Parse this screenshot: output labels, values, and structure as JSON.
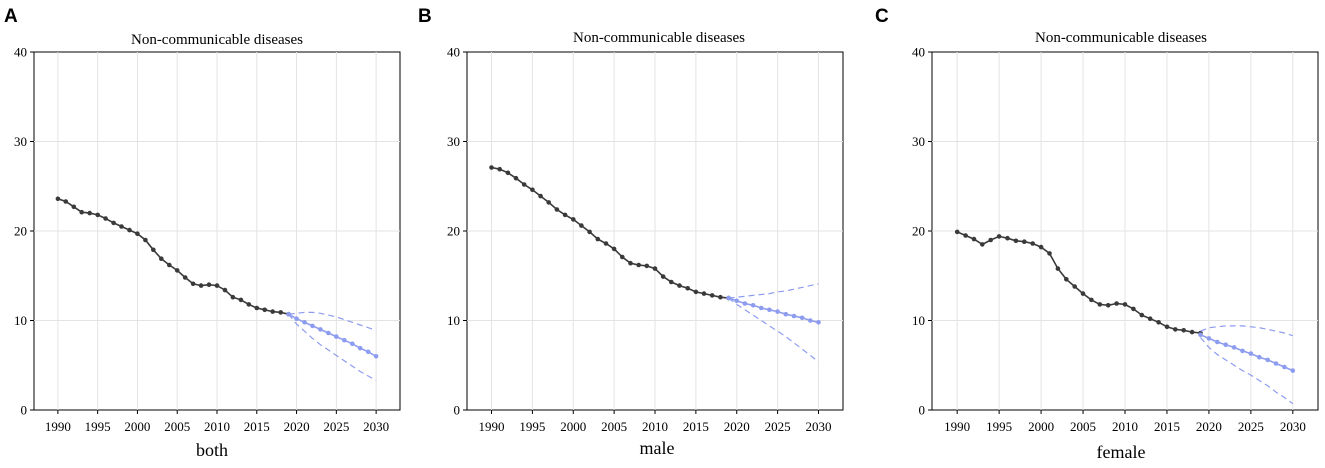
{
  "chart_data": [
    {
      "type": "line",
      "panel": "A",
      "title": "Non-communicable diseases",
      "xlabel": "both",
      "ylabel": "",
      "xlim": [
        1987,
        2033
      ],
      "ylim": [
        0,
        40
      ],
      "xticks": [
        1990,
        1995,
        2000,
        2005,
        2010,
        2015,
        2020,
        2025,
        2030
      ],
      "yticks": [
        0,
        10,
        20,
        30,
        40
      ],
      "grid": true,
      "series": [
        {
          "name": "observed",
          "color": "#3a3a3a",
          "x": [
            1990,
            1991,
            1992,
            1993,
            1994,
            1995,
            1996,
            1997,
            1998,
            1999,
            2000,
            2001,
            2002,
            2003,
            2004,
            2005,
            2006,
            2007,
            2008,
            2009,
            2010,
            2011,
            2012,
            2013,
            2014,
            2015,
            2016,
            2017,
            2018,
            2019
          ],
          "values": [
            23.6,
            23.3,
            22.7,
            22.1,
            22.0,
            21.8,
            21.4,
            20.9,
            20.5,
            20.1,
            19.7,
            19.0,
            17.9,
            16.9,
            16.2,
            15.6,
            14.8,
            14.1,
            13.9,
            14.0,
            13.9,
            13.4,
            12.6,
            12.3,
            11.8,
            11.4,
            11.2,
            11.0,
            10.9,
            10.7
          ]
        },
        {
          "name": "predicted",
          "color": "#8e9cf0",
          "x": [
            2019,
            2020,
            2021,
            2022,
            2023,
            2024,
            2025,
            2026,
            2027,
            2028,
            2029,
            2030
          ],
          "values": [
            10.7,
            10.2,
            9.8,
            9.4,
            9.0,
            8.6,
            8.2,
            7.8,
            7.4,
            6.9,
            6.5,
            6.0
          ]
        },
        {
          "name": "upper bound",
          "color": "#8e9cf0",
          "dashed": true,
          "x": [
            2019,
            2020,
            2021,
            2022,
            2023,
            2024,
            2025,
            2026,
            2027,
            2028,
            2029,
            2030
          ],
          "values": [
            10.7,
            10.8,
            10.9,
            10.9,
            10.8,
            10.6,
            10.4,
            10.1,
            9.8,
            9.5,
            9.2,
            8.9
          ]
        },
        {
          "name": "lower bound",
          "color": "#8e9cf0",
          "dashed": true,
          "x": [
            2019,
            2020,
            2021,
            2022,
            2023,
            2024,
            2025,
            2026,
            2027,
            2028,
            2029,
            2030
          ],
          "values": [
            10.7,
            9.6,
            8.8,
            8.0,
            7.3,
            6.7,
            6.1,
            5.5,
            4.9,
            4.3,
            3.8,
            3.3
          ]
        }
      ]
    },
    {
      "type": "line",
      "panel": "B",
      "title": "Non-communicable diseases",
      "xlabel": "male",
      "ylabel": "",
      "xlim": [
        1987,
        2033
      ],
      "ylim": [
        0,
        40
      ],
      "xticks": [
        1990,
        1995,
        2000,
        2005,
        2010,
        2015,
        2020,
        2025,
        2030
      ],
      "yticks": [
        0,
        10,
        20,
        30,
        40
      ],
      "grid": true,
      "series": [
        {
          "name": "observed",
          "color": "#3a3a3a",
          "x": [
            1990,
            1991,
            1992,
            1993,
            1994,
            1995,
            1996,
            1997,
            1998,
            1999,
            2000,
            2001,
            2002,
            2003,
            2004,
            2005,
            2006,
            2007,
            2008,
            2009,
            2010,
            2011,
            2012,
            2013,
            2014,
            2015,
            2016,
            2017,
            2018,
            2019
          ],
          "values": [
            27.1,
            26.9,
            26.5,
            25.9,
            25.2,
            24.6,
            23.9,
            23.2,
            22.4,
            21.8,
            21.3,
            20.6,
            19.9,
            19.1,
            18.6,
            18.0,
            17.1,
            16.4,
            16.2,
            16.1,
            15.8,
            14.9,
            14.3,
            13.9,
            13.6,
            13.2,
            13.0,
            12.8,
            12.6,
            12.5
          ]
        },
        {
          "name": "predicted",
          "color": "#8e9cf0",
          "x": [
            2019,
            2020,
            2021,
            2022,
            2023,
            2024,
            2025,
            2026,
            2027,
            2028,
            2029,
            2030
          ],
          "values": [
            12.5,
            12.2,
            11.9,
            11.7,
            11.4,
            11.2,
            11.0,
            10.7,
            10.5,
            10.3,
            10.0,
            9.8
          ]
        },
        {
          "name": "upper bound",
          "color": "#8e9cf0",
          "dashed": true,
          "x": [
            2019,
            2020,
            2021,
            2022,
            2023,
            2024,
            2025,
            2026,
            2027,
            2028,
            2029,
            2030
          ],
          "values": [
            12.5,
            12.6,
            12.7,
            12.8,
            12.9,
            13.0,
            13.2,
            13.3,
            13.5,
            13.7,
            13.9,
            14.1
          ]
        },
        {
          "name": "lower bound",
          "color": "#8e9cf0",
          "dashed": true,
          "x": [
            2019,
            2020,
            2021,
            2022,
            2023,
            2024,
            2025,
            2026,
            2027,
            2028,
            2029,
            2030
          ],
          "values": [
            12.5,
            11.8,
            11.2,
            10.6,
            10.0,
            9.4,
            8.8,
            8.2,
            7.5,
            6.8,
            6.1,
            5.4
          ]
        }
      ]
    },
    {
      "type": "line",
      "panel": "C",
      "title": "Non-communicable diseases",
      "xlabel": "female",
      "ylabel": "",
      "xlim": [
        1987,
        2033
      ],
      "ylim": [
        0,
        40
      ],
      "xticks": [
        1990,
        1995,
        2000,
        2005,
        2010,
        2015,
        2020,
        2025,
        2030
      ],
      "yticks": [
        0,
        10,
        20,
        30,
        40
      ],
      "grid": true,
      "series": [
        {
          "name": "observed",
          "color": "#3a3a3a",
          "x": [
            1990,
            1991,
            1992,
            1993,
            1994,
            1995,
            1996,
            1997,
            1998,
            1999,
            2000,
            2001,
            2002,
            2003,
            2004,
            2005,
            2006,
            2007,
            2008,
            2009,
            2010,
            2011,
            2012,
            2013,
            2014,
            2015,
            2016,
            2017,
            2018,
            2019
          ],
          "values": [
            19.9,
            19.5,
            19.1,
            18.5,
            19.0,
            19.4,
            19.2,
            18.9,
            18.8,
            18.6,
            18.2,
            17.5,
            15.8,
            14.6,
            13.8,
            13.0,
            12.3,
            11.8,
            11.7,
            11.9,
            11.8,
            11.3,
            10.6,
            10.2,
            9.8,
            9.3,
            9.0,
            8.9,
            8.7,
            8.6
          ]
        },
        {
          "name": "predicted",
          "color": "#8e9cf0",
          "x": [
            2019,
            2020,
            2021,
            2022,
            2023,
            2024,
            2025,
            2026,
            2027,
            2028,
            2029,
            2030
          ],
          "values": [
            8.4,
            8.0,
            7.6,
            7.3,
            7.0,
            6.6,
            6.3,
            5.9,
            5.6,
            5.2,
            4.8,
            4.4
          ]
        },
        {
          "name": "upper bound",
          "color": "#8e9cf0",
          "dashed": true,
          "x": [
            2019,
            2020,
            2021,
            2022,
            2023,
            2024,
            2025,
            2026,
            2027,
            2028,
            2029,
            2030
          ],
          "values": [
            8.8,
            9.2,
            9.3,
            9.4,
            9.4,
            9.4,
            9.3,
            9.2,
            9.0,
            8.8,
            8.6,
            8.3
          ]
        },
        {
          "name": "lower bound",
          "color": "#8e9cf0",
          "dashed": true,
          "x": [
            2019,
            2020,
            2021,
            2022,
            2023,
            2024,
            2025,
            2026,
            2027,
            2028,
            2029,
            2030
          ],
          "values": [
            8.1,
            7.0,
            6.2,
            5.6,
            5.0,
            4.4,
            3.9,
            3.3,
            2.7,
            2.0,
            1.4,
            0.7
          ]
        }
      ]
    }
  ]
}
